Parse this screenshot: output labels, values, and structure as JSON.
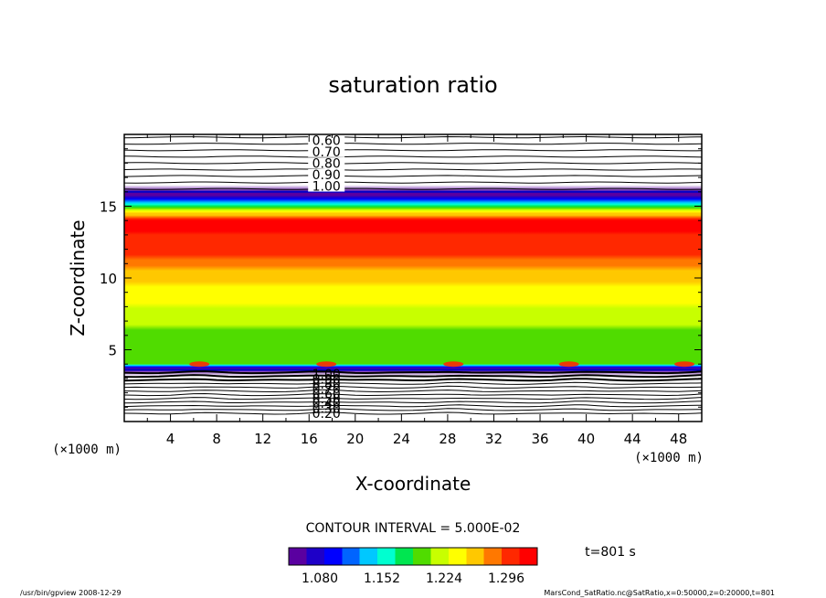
{
  "chart_data": {
    "type": "heatmap",
    "title": "saturation ratio",
    "xlabel": "X-coordinate",
    "ylabel": "Z-coordinate",
    "x_unit": "(×1000 m)",
    "y_unit": "(×1000 m)",
    "xlim": [
      0,
      50
    ],
    "ylim": [
      0,
      20
    ],
    "x_ticks": [
      "4",
      "8",
      "12",
      "16",
      "20",
      "24",
      "28",
      "32",
      "36",
      "40",
      "44",
      "48"
    ],
    "y_ticks": [
      "5",
      "10",
      "15"
    ],
    "contour_interval_label": "CONTOUR INTERVAL = 5.000E-02",
    "time_label": "t=801 s",
    "colorbar_ticks": [
      "1.080",
      "1.152",
      "1.224",
      "1.296"
    ],
    "colorbar_range": [
      1.044,
      1.332
    ],
    "contour_labels_top": [
      "0.60",
      "0.70",
      "0.80",
      "0.90",
      "1.00"
    ],
    "contour_labels_bottom": [
      "1.00",
      "0.90",
      "0.80",
      "0.70",
      "0.60",
      "0.50",
      "0.40",
      "0.30",
      "0.20"
    ],
    "vertical_profile": [
      {
        "z": 0.2,
        "ratio": 0.2
      },
      {
        "z": 3.6,
        "ratio": 1.0
      },
      {
        "z": 4.0,
        "ratio": 1.19
      },
      {
        "z": 6.0,
        "ratio": 1.2
      },
      {
        "z": 9.0,
        "ratio": 1.24
      },
      {
        "z": 12.0,
        "ratio": 1.3
      },
      {
        "z": 14.0,
        "ratio": 1.32
      },
      {
        "z": 15.0,
        "ratio": 1.18
      },
      {
        "z": 16.0,
        "ratio": 1.0
      },
      {
        "z": 19.8,
        "ratio": 0.6
      }
    ],
    "warm_spots_x": [
      6.5,
      17.5,
      28.5,
      38.5,
      48.5
    ]
  },
  "footer": {
    "left": "/usr/bin/gpview  2008-12-29",
    "right": "MarsCond_SatRatio.nc@SatRatio,x=0:50000,z=0:20000,t=801"
  },
  "colors": {
    "colormap": [
      "#5a00a0",
      "#1e00c8",
      "#0000ff",
      "#0064ff",
      "#00c8ff",
      "#00ffd0",
      "#00e650",
      "#50dc00",
      "#c8ff00",
      "#ffff00",
      "#ffc800",
      "#ff7800",
      "#ff2800",
      "#ff0000"
    ]
  }
}
